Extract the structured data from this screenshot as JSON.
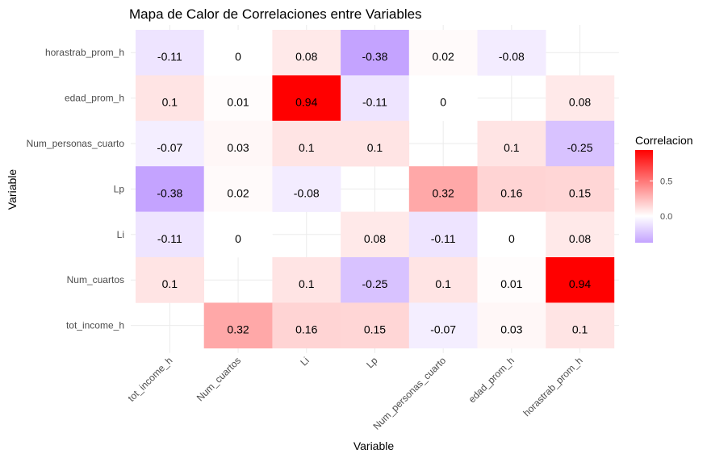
{
  "chart_data": {
    "type": "heatmap",
    "title": "Mapa de Calor de Correlaciones entre Variables",
    "xlabel": "Variable",
    "ylabel": "Variable",
    "x_categories": [
      "tot_income_h",
      "Num_cuartos",
      "Li",
      "Lp",
      "Num_personas_cuarto",
      "edad_prom_h",
      "horastrab_prom_h"
    ],
    "y_categories": [
      "horastrab_prom_h",
      "edad_prom_h",
      "Num_personas_cuarto",
      "Lp",
      "Li",
      "Num_cuartos",
      "tot_income_h"
    ],
    "values": [
      [
        -0.11,
        0,
        0.08,
        -0.38,
        0.02,
        -0.08,
        null
      ],
      [
        0.1,
        0.01,
        0.94,
        -0.11,
        0,
        null,
        0.08
      ],
      [
        -0.07,
        0.03,
        0.1,
        0.1,
        null,
        0.1,
        -0.25
      ],
      [
        -0.38,
        0.02,
        -0.08,
        null,
        0.32,
        0.16,
        0.15
      ],
      [
        -0.11,
        0,
        null,
        0.08,
        -0.11,
        0,
        0.08
      ],
      [
        0.1,
        null,
        0.1,
        -0.25,
        0.1,
        0.01,
        0.94
      ],
      [
        null,
        0.32,
        0.16,
        0.15,
        -0.07,
        0.03,
        0.1
      ]
    ],
    "legend": {
      "title": "Correlacion",
      "position": "right",
      "ticks": [
        0.5,
        0.0
      ],
      "tick_labels": [
        "0.5",
        "0.0"
      ],
      "range": [
        -0.38,
        0.94
      ]
    },
    "colors": {
      "low": "#c4a3ff",
      "mid": "#ffffff",
      "high": "#ff0000"
    },
    "grid": true
  }
}
